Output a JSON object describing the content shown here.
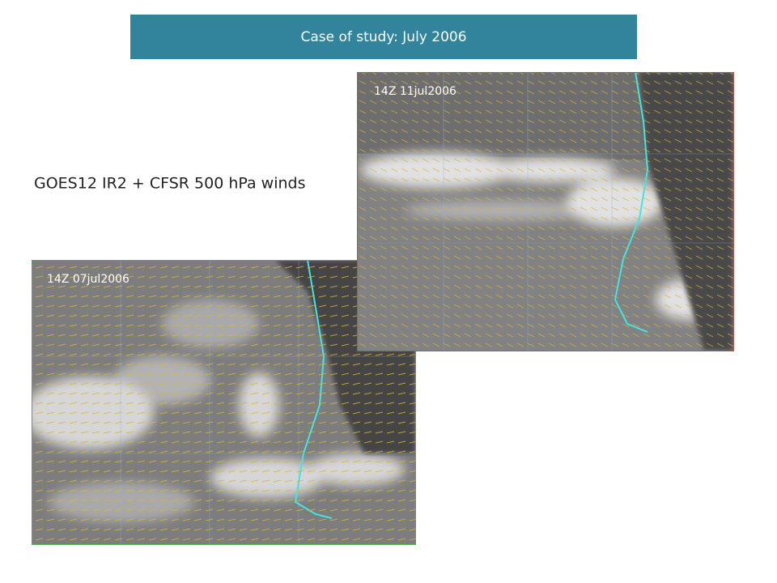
{
  "header": {
    "title": "Case of study: July 2006"
  },
  "subtitle": "GOES12 IR2 + CFSR 500 hPa winds",
  "images": [
    {
      "label": "14Z 11jul2006"
    },
    {
      "label": "14Z 07jul2006"
    }
  ]
}
